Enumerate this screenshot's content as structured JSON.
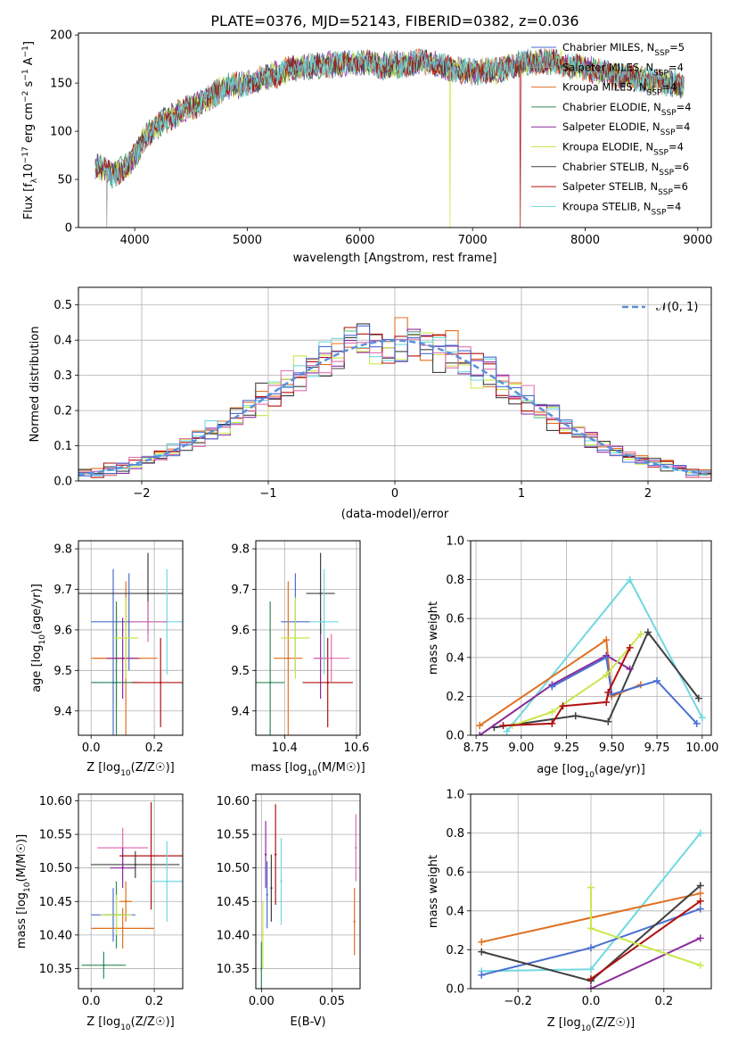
{
  "figure_title": "PLATE=0376, MJD=52143, FIBERID=0382, z=0.036",
  "chart_data": [
    {
      "id": "spectrum",
      "type": "line",
      "xlabel": "wavelength [Angstrom, rest frame]",
      "ylabel": "Flux [f_λ10^-17 erg cm^-2 s^-1 A^-1]",
      "xlim": [
        3500,
        9120
      ],
      "ylim": [
        0,
        202
      ],
      "xticks": [
        4000,
        5000,
        6000,
        7000,
        8000,
        9000
      ],
      "yticks": [
        0,
        50,
        100,
        150,
        200
      ],
      "grid": false,
      "legend_position": "top-right",
      "continuum": {
        "x": [
          3650,
          3800,
          3950,
          4100,
          4250,
          4400,
          4600,
          4800,
          5000,
          5200,
          5400,
          5600,
          5800,
          6000,
          6200,
          6400,
          6600,
          6800,
          7000,
          7200,
          7400,
          7600,
          7800,
          8000,
          8200,
          8400,
          8600,
          8800,
          8880
        ],
        "y": [
          65,
          55,
          65,
          95,
          110,
          120,
          130,
          145,
          150,
          157,
          165,
          168,
          170,
          172,
          168,
          170,
          172,
          165,
          162,
          163,
          170,
          172,
          170,
          165,
          160,
          156,
          152,
          150,
          145
        ]
      },
      "series": [
        {
          "name": "Chabrier MILES, N_SSP=5",
          "color": "#4a6fd0",
          "drop_at": null
        },
        {
          "name": "Salpeter MILES, N_SSP=4",
          "color": "#a0a0a0",
          "drop_at": 3750
        },
        {
          "name": "Kroupa MILES, N_SSP=4",
          "color": "#e07020",
          "drop_at": null
        },
        {
          "name": "Chabrier ELODIE, N_SSP=4",
          "color": "#2e8b57",
          "drop_at": null
        },
        {
          "name": "Salpeter ELODIE, N_SSP=4",
          "color": "#8b2a9b",
          "drop_at": null
        },
        {
          "name": "Kroupa ELODIE, N_SSP=4",
          "color": "#c8e84a",
          "drop_at": 6800
        },
        {
          "name": "Chabrier STELIB, N_SSP=6",
          "color": "#404040",
          "drop_at": null
        },
        {
          "name": "Salpeter STELIB, N_SSP=6",
          "color": "#b01010",
          "drop_at": 7420
        },
        {
          "name": "Kroupa STELIB, N_SSP=4",
          "color": "#70d8e0",
          "drop_at": null
        }
      ]
    },
    {
      "id": "residuals",
      "type": "bar",
      "xlabel": "(data-model)/error",
      "ylabel": "Normed distribution",
      "xlim": [
        -2.5,
        2.5
      ],
      "ylim": [
        0,
        0.55
      ],
      "xticks": [
        -2,
        -1,
        0,
        1,
        2
      ],
      "yticks": [
        0.0,
        0.1,
        0.2,
        0.3,
        0.4,
        0.5
      ],
      "grid": true,
      "legend": "𝒩(0, 1)",
      "legend_position": "top-right",
      "reference_curve": {
        "name": "𝒩(0, 1)",
        "mean": 0,
        "sigma": 1,
        "color": "#5b8fd9",
        "dashed": true
      },
      "histogram_colors": [
        "#e07020",
        "#8b2a9b",
        "#c8e84a",
        "#404040",
        "#b01010",
        "#70d8e0",
        "#e070b0",
        "#4a6fd0"
      ],
      "bin_width": 0.1
    },
    {
      "id": "age_vs_Z",
      "type": "scatter",
      "xlabel": "Z [log10(Z/Z☉)]",
      "ylabel": "age [log10(age/yr)]",
      "xlim": [
        -0.04,
        0.29
      ],
      "ylim": [
        9.34,
        9.82
      ],
      "xticks": [
        0.0,
        0.2
      ],
      "yticks": [
        9.4,
        9.5,
        9.6,
        9.7,
        9.8
      ],
      "grid": true,
      "points": [
        {
          "x": 0.07,
          "y": 9.47,
          "xerr": 0.07,
          "yerr": 0.28,
          "color": "#4a6fd0"
        },
        {
          "x": 0.12,
          "y": 9.62,
          "xerr": 0.12,
          "yerr": 0.12,
          "color": "#4a6fd0"
        },
        {
          "x": 0.08,
          "y": 9.53,
          "xerr": 0.08,
          "yerr": 0.12,
          "color": "#e07020"
        },
        {
          "x": 0.11,
          "y": 9.53,
          "xerr": 0.1,
          "yerr": 0.19,
          "color": "#e07020"
        },
        {
          "x": 0.08,
          "y": 9.47,
          "xerr": 0.08,
          "yerr": 0.2,
          "color": "#2e8b57"
        },
        {
          "x": 0.1,
          "y": 9.53,
          "xerr": 0.05,
          "yerr": 0.1,
          "color": "#8b2a9b"
        },
        {
          "x": 0.11,
          "y": 9.58,
          "xerr": 0.04,
          "yerr": 0.1,
          "color": "#c8e84a"
        },
        {
          "x": 0.18,
          "y": 9.69,
          "xerr": 0.25,
          "yerr": 0.1,
          "color": "#404040"
        },
        {
          "x": 0.22,
          "y": 9.47,
          "xerr": 0.09,
          "yerr": 0.11,
          "color": "#b01010"
        },
        {
          "x": 0.24,
          "y": 9.62,
          "xerr": 0.05,
          "yerr": 0.13,
          "color": "#70d8e0"
        },
        {
          "x": 0.18,
          "y": 9.62,
          "xerr": 0.06,
          "yerr": 0.05,
          "color": "#e070b0"
        }
      ]
    },
    {
      "id": "age_vs_mass",
      "type": "scatter",
      "xlabel": "mass [log10(M/M☉)]",
      "ylabel": "",
      "xlim": [
        10.32,
        10.61
      ],
      "ylim": [
        9.34,
        9.82
      ],
      "xticks": [
        10.4,
        10.6
      ],
      "yticks": [
        9.4,
        9.5,
        9.6,
        9.7,
        9.8
      ],
      "grid": true,
      "points": [
        {
          "x": 10.43,
          "y": 9.62,
          "xerr": 0.04,
          "yerr": 0.12,
          "color": "#4a6fd0"
        },
        {
          "x": 10.41,
          "y": 9.53,
          "xerr": 0.04,
          "yerr": 0.19,
          "color": "#e07020"
        },
        {
          "x": 10.36,
          "y": 9.47,
          "xerr": 0.04,
          "yerr": 0.2,
          "color": "#2e8b57"
        },
        {
          "x": 10.5,
          "y": 9.53,
          "xerr": 0.02,
          "yerr": 0.1,
          "color": "#8b2a9b"
        },
        {
          "x": 10.43,
          "y": 9.58,
          "xerr": 0.04,
          "yerr": 0.1,
          "color": "#c8e84a"
        },
        {
          "x": 10.5,
          "y": 9.69,
          "xerr": 0.04,
          "yerr": 0.1,
          "color": "#404040"
        },
        {
          "x": 10.52,
          "y": 9.47,
          "xerr": 0.07,
          "yerr": 0.11,
          "color": "#b01010"
        },
        {
          "x": 10.51,
          "y": 9.62,
          "xerr": 0.04,
          "yerr": 0.13,
          "color": "#70d8e0"
        },
        {
          "x": 10.53,
          "y": 9.53,
          "xerr": 0.05,
          "yerr": 0.06,
          "color": "#e070b0"
        }
      ]
    },
    {
      "id": "massweight_vs_age",
      "type": "line",
      "xlabel": "age [log10(age/yr)]",
      "ylabel": "mass weight",
      "xlim": [
        8.72,
        10.05
      ],
      "ylim": [
        0,
        1.0
      ],
      "xticks": [
        8.75,
        9.0,
        9.25,
        9.5,
        9.75,
        10.0
      ],
      "yticks": [
        0.0,
        0.2,
        0.4,
        0.6,
        0.8,
        1.0
      ],
      "grid": true,
      "series": [
        {
          "color": "#70d8e0",
          "x": [
            8.92,
            9.6,
            10.0
          ],
          "y": [
            0.02,
            0.8,
            0.09
          ]
        },
        {
          "color": "#404040",
          "x": [
            8.85,
            9.3,
            9.48,
            9.7,
            9.98
          ],
          "y": [
            0.04,
            0.1,
            0.07,
            0.53,
            0.19
          ]
        },
        {
          "color": "#e07020",
          "x": [
            8.77,
            9.47,
            9.5,
            9.66
          ],
          "y": [
            0.05,
            0.49,
            0.2,
            0.26
          ]
        },
        {
          "color": "#8b2a9b",
          "x": [
            8.77,
            9.17,
            9.47,
            9.6
          ],
          "y": [
            0.0,
            0.26,
            0.41,
            0.34
          ]
        },
        {
          "color": "#4a6fd0",
          "x": [
            9.17,
            9.47,
            9.5,
            9.75,
            9.97
          ],
          "y": [
            0.25,
            0.4,
            0.21,
            0.28,
            0.06
          ]
        },
        {
          "color": "#c8e84a",
          "x": [
            8.95,
            9.17,
            9.47,
            9.66
          ],
          "y": [
            0.05,
            0.12,
            0.31,
            0.52
          ]
        },
        {
          "color": "#b01010",
          "x": [
            8.9,
            9.17,
            9.23,
            9.47,
            9.48,
            9.6
          ],
          "y": [
            0.05,
            0.06,
            0.15,
            0.17,
            0.22,
            0.45
          ]
        }
      ]
    },
    {
      "id": "mass_vs_Z",
      "type": "scatter",
      "xlabel": "Z [log10(Z/Z☉)]",
      "ylabel": "mass [log10(M/M☉)]",
      "xlim": [
        -0.04,
        0.29
      ],
      "ylim": [
        10.32,
        10.61
      ],
      "xticks": [
        0.0,
        0.2
      ],
      "yticks": [
        10.35,
        10.4,
        10.45,
        10.5,
        10.55,
        10.6
      ],
      "grid": true,
      "points": [
        {
          "x": 0.07,
          "y": 10.43,
          "xerr": 0.07,
          "yerr": 0.04,
          "color": "#4a6fd0"
        },
        {
          "x": 0.1,
          "y": 10.41,
          "xerr": 0.1,
          "yerr": 0.03,
          "color": "#e07020"
        },
        {
          "x": 0.11,
          "y": 10.45,
          "xerr": 0.02,
          "yerr": 0.03,
          "color": "#e07020"
        },
        {
          "x": 0.04,
          "y": 10.355,
          "xerr": 0.07,
          "yerr": 0.02,
          "color": "#2e8b57"
        },
        {
          "x": 0.08,
          "y": 10.43,
          "xerr": 0.03,
          "yerr": 0.05,
          "color": "#2e8b57"
        },
        {
          "x": 0.1,
          "y": 10.53,
          "xerr": 0.08,
          "yerr": 0.03,
          "color": "#e070b0"
        },
        {
          "x": 0.1,
          "y": 10.5,
          "xerr": 0.04,
          "yerr": 0.03,
          "color": "#8b2a9b"
        },
        {
          "x": 0.08,
          "y": 10.43,
          "xerr": 0.05,
          "yerr": 0.03,
          "color": "#c8e84a"
        },
        {
          "x": 0.14,
          "y": 10.505,
          "xerr": 0.14,
          "yerr": 0.02,
          "color": "#404040"
        },
        {
          "x": 0.19,
          "y": 10.518,
          "xerr": 0.1,
          "yerr": 0.08,
          "color": "#b01010"
        },
        {
          "x": 0.24,
          "y": 10.48,
          "xerr": 0.05,
          "yerr": 0.06,
          "color": "#70d8e0"
        }
      ]
    },
    {
      "id": "mass_vs_EBV",
      "type": "scatter",
      "xlabel": "E(B-V)",
      "ylabel": "",
      "xlim": [
        -0.004,
        0.07
      ],
      "ylim": [
        10.32,
        10.61
      ],
      "xticks": [
        0.0,
        0.05
      ],
      "yticks": [
        10.35,
        10.4,
        10.45,
        10.5,
        10.55,
        10.6
      ],
      "grid": true,
      "points": [
        {
          "x": 0.0,
          "y": 10.35,
          "yerr": 0.04,
          "color": "#2e8b57"
        },
        {
          "x": 0.001,
          "y": 10.4,
          "yerr": 0.05,
          "color": "#c8e84a"
        },
        {
          "x": 0.003,
          "y": 10.52,
          "yerr": 0.05,
          "color": "#8b2a9b"
        },
        {
          "x": 0.004,
          "y": 10.46,
          "yerr": 0.05,
          "color": "#4a6fd0"
        },
        {
          "x": 0.007,
          "y": 10.47,
          "yerr": 0.05,
          "color": "#404040"
        },
        {
          "x": 0.01,
          "y": 10.52,
          "yerr": 0.075,
          "color": "#b01010"
        },
        {
          "x": 0.014,
          "y": 10.48,
          "yerr": 0.065,
          "color": "#70d8e0"
        },
        {
          "x": 0.066,
          "y": 10.42,
          "yerr": 0.05,
          "color": "#e07020"
        },
        {
          "x": 0.067,
          "y": 10.53,
          "yerr": 0.05,
          "color": "#e070b0"
        }
      ]
    },
    {
      "id": "massweight_vs_Z",
      "type": "line",
      "xlabel": "Z [log10(Z/Z☉)]",
      "ylabel": "mass weight",
      "xlim": [
        -0.33,
        0.33
      ],
      "ylim": [
        0,
        1.0
      ],
      "xticks": [
        -0.2,
        0.0,
        0.2
      ],
      "yticks": [
        0.0,
        0.2,
        0.4,
        0.6,
        0.8,
        1.0
      ],
      "grid": true,
      "series": [
        {
          "color": "#70d8e0",
          "x": [
            -0.3,
            0.0,
            0.3
          ],
          "y": [
            0.09,
            0.1,
            0.8
          ]
        },
        {
          "color": "#e07020",
          "x": [
            -0.3,
            0.3
          ],
          "y": [
            0.24,
            0.49
          ]
        },
        {
          "color": "#4a6fd0",
          "x": [
            -0.3,
            0.0,
            0.3
          ],
          "y": [
            0.07,
            0.21,
            0.41
          ]
        },
        {
          "color": "#404040",
          "x": [
            -0.3,
            0.0,
            0.3
          ],
          "y": [
            0.19,
            0.04,
            0.53
          ]
        },
        {
          "color": "#b01010",
          "x": [
            0.0,
            0.3
          ],
          "y": [
            0.05,
            0.45
          ]
        },
        {
          "color": "#8b2a9b",
          "x": [
            0.0,
            0.3
          ],
          "y": [
            0.0,
            0.26
          ]
        },
        {
          "color": "#c8e84a",
          "x": [
            0.0,
            0.0,
            0.3
          ],
          "y": [
            0.52,
            0.31,
            0.12
          ]
        }
      ]
    }
  ]
}
